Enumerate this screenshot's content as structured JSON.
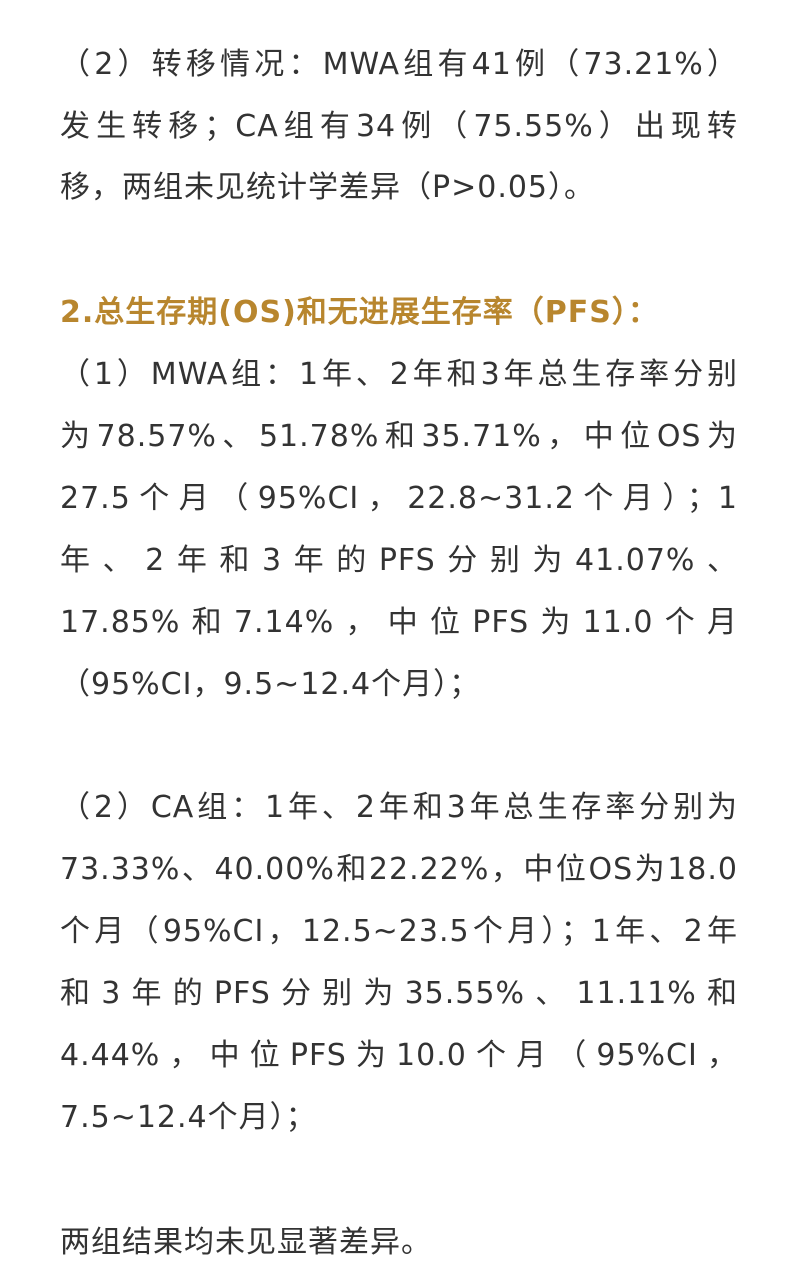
{
  "colors": {
    "text": "#333333",
    "heading": "#b8862e"
  },
  "paragraphs": [
    {
      "lines": [
        "（2）转移情况：MWA组有41例（73.21%）",
        "发生转移；CA组有34例（75.55%）出现转",
        "移，两组未见统计学差异（P>0.05）。"
      ]
    },
    {
      "heading": true,
      "lines": [
        "2.总生存期(OS)和无进展生存率（PFS）："
      ]
    },
    {
      "lines": [
        "（1）MWA组：1年、2年和3年总生存率分别",
        "为78.57%、51.78%和35.71%，中位OS为",
        "27.5个月（95%CI，22.8~31.2个月）；1",
        "年、2年和3年的PFS分别为41.07%、",
        "17.85%和7.14%，中位PFS为11.0个月",
        "（95%CI，9.5~12.4个月）；"
      ]
    },
    {
      "lines": [
        "（2）CA组：1年、2年和3年总生存率分别为",
        "73.33%、40.00%和22.22%，中位OS为18.0",
        "个月（95%CI，12.5~23.5个月）；1年、2年",
        "和3年的PFS分别为35.55%、11.11%和",
        "4.44%，中位PFS为10.0个月（95%CI，",
        "7.5~12.4个月）；"
      ]
    },
    {
      "lines": [
        "两组结果均未见显著差异。"
      ]
    }
  ]
}
